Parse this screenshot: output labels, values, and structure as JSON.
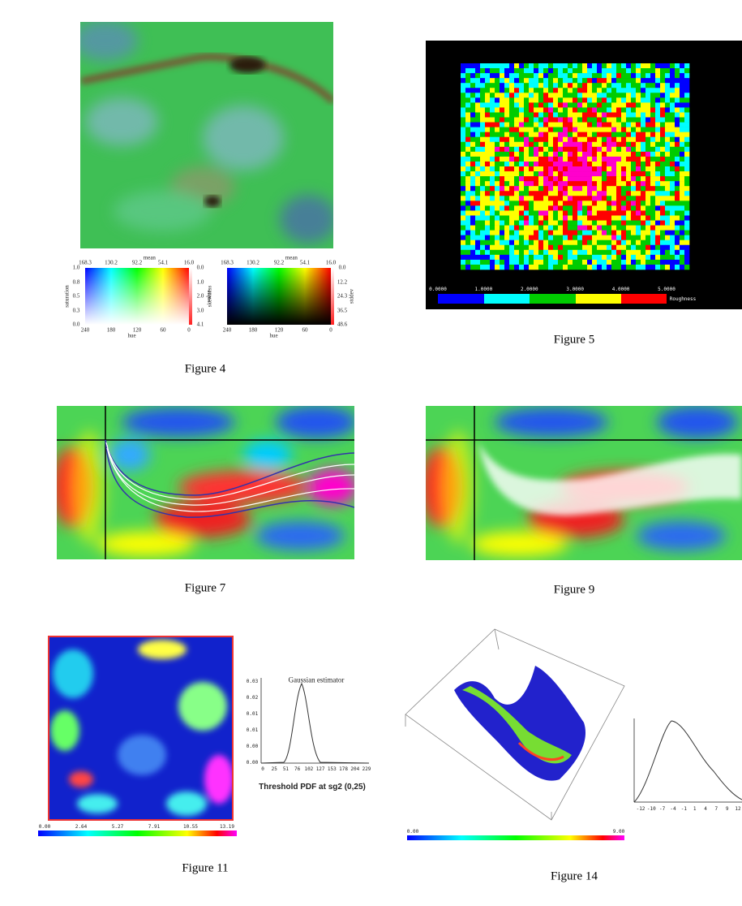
{
  "figures": [
    {
      "caption": "Figure 4",
      "legends": [
        {
          "top_title": "mean",
          "top_ticks": [
            "168.3",
            "130.2",
            "92.2",
            "54.1",
            "16.0"
          ],
          "left_title": "saturation",
          "left_ticks": [
            "1.0",
            "0.8",
            "0.5",
            "0.3",
            "0.0"
          ],
          "right_title": "skewness",
          "right_ticks": [
            "0.0",
            "1.0",
            "2.0",
            "3.0",
            "4.1"
          ],
          "bottom_title": "hue",
          "bottom_ticks": [
            "240",
            "180",
            "120",
            "60",
            "0"
          ]
        },
        {
          "top_title": "mean",
          "top_ticks": [
            "168.3",
            "130.2",
            "92.2",
            "54.1",
            "16.0"
          ],
          "left_title": "value",
          "right_title": "stddev",
          "right_ticks": [
            "0.0",
            "12.2",
            "24.3",
            "36.5",
            "48.6"
          ],
          "bottom_title": "hue",
          "bottom_ticks": [
            "240",
            "180",
            "120",
            "60",
            "0"
          ]
        }
      ]
    },
    {
      "caption": "Figure 5",
      "colorbar": {
        "ticks": [
          "0.0000",
          "1.0000",
          "2.0000",
          "3.0000",
          "4.0000",
          "5.0000"
        ],
        "label": "Roughness"
      }
    },
    {
      "caption": "Figure 7"
    },
    {
      "caption": "Figure 9"
    },
    {
      "caption": "Figure 11",
      "colorbar": {
        "ticks": [
          "0.00",
          "2.64",
          "5.27",
          "7.91",
          "10.55",
          "13.19"
        ]
      },
      "plot": {
        "title": "Gaussian estimator",
        "yticks": [
          "0.03",
          "0.02",
          "0.01",
          "0.01",
          "0.00",
          "0.00"
        ],
        "xticks": [
          "0",
          "25",
          "51",
          "76",
          "102",
          "127",
          "153",
          "178",
          "204",
          "229"
        ],
        "xlabel": "Threshold PDF at sg2 (0,25)"
      }
    },
    {
      "caption": "Figure 14",
      "colorbar": {
        "ticks": [
          "0.00",
          "9.00"
        ]
      },
      "plot": {
        "xticks": [
          "-12",
          "-10",
          "-7",
          "-4",
          "-1",
          "1",
          "4",
          "7",
          "9",
          "12"
        ]
      }
    }
  ]
}
